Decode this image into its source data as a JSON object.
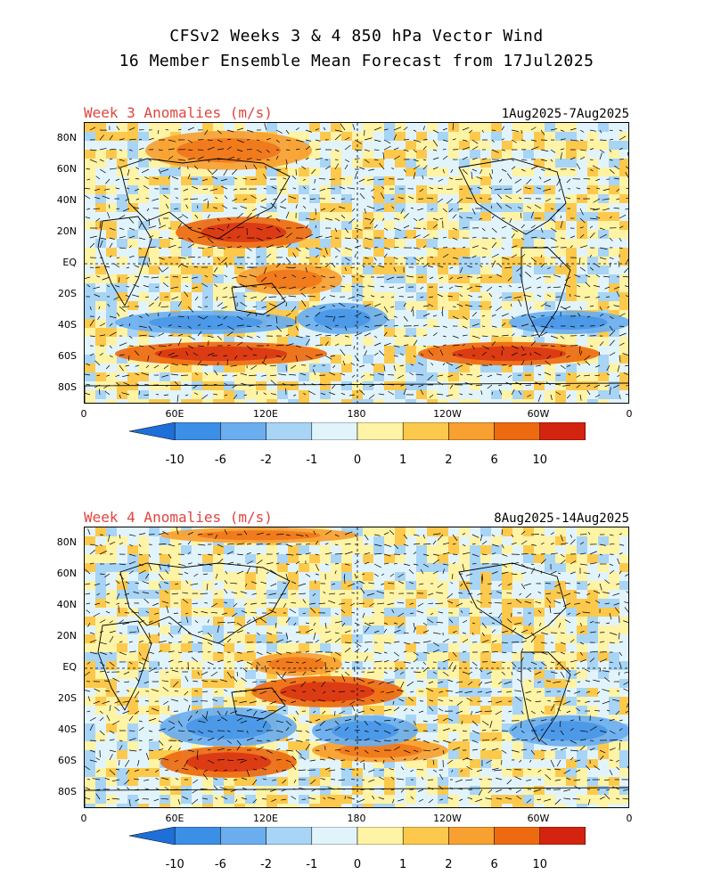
{
  "header": {
    "line1": "CFSv2 Weeks 3 & 4 850 hPa Vector Wind",
    "line2": "16 Member Ensemble Mean Forecast from 17Jul2025"
  },
  "panels": [
    {
      "title": "Week 3 Anomalies (m/s)",
      "dates": "1Aug2025-7Aug2025"
    },
    {
      "title": "Week 4 Anomalies (m/s)",
      "dates": "8Aug2025-14Aug2025"
    }
  ],
  "lat_labels": [
    "80N",
    "60N",
    "40N",
    "20N",
    "EQ",
    "20S",
    "40S",
    "60S",
    "80S"
  ],
  "lon_labels": [
    "0",
    "60E",
    "120E",
    "180",
    "120W",
    "60W",
    "0"
  ],
  "colorbar": {
    "labels": [
      "-10",
      "-6",
      "-2",
      "-1",
      "0",
      "1",
      "2",
      "6",
      "10"
    ],
    "colors": [
      "#1e6fd9",
      "#3c8fe6",
      "#6aaeef",
      "#a8d4f5",
      "#e2f4fb",
      "#fff3a6",
      "#fcc94d",
      "#f8a030",
      "#ee6a10",
      "#d42410",
      "#a80000"
    ]
  },
  "chart_data": [
    {
      "type": "heatmap",
      "title": "Week 3 Anomalies (m/s)",
      "period": "1Aug2025-7Aug2025",
      "xlim": [
        0,
        360
      ],
      "ylim": [
        -90,
        90
      ],
      "anomaly_regions": [
        {
          "lon": [
            60,
            150
          ],
          "lat": [
            10,
            30
          ],
          "level": "6"
        },
        {
          "lon": [
            100,
            170
          ],
          "lat": [
            -20,
            0
          ],
          "level": "2"
        },
        {
          "lon": [
            20,
            140
          ],
          "lat": [
            -45,
            -30
          ],
          "level": "-2"
        },
        {
          "lon": [
            20,
            160
          ],
          "lat": [
            -65,
            -50
          ],
          "level": "6"
        },
        {
          "lon": [
            220,
            340
          ],
          "lat": [
            -65,
            -50
          ],
          "level": "6"
        },
        {
          "lon": [
            280,
            360
          ],
          "lat": [
            -45,
            -30
          ],
          "level": "-2"
        },
        {
          "lon": [
            140,
            200
          ],
          "lat": [
            -45,
            -25
          ],
          "level": "-2"
        },
        {
          "lon": [
            40,
            150
          ],
          "lat": [
            60,
            85
          ],
          "level": "2"
        }
      ]
    },
    {
      "type": "heatmap",
      "title": "Week 4 Anomalies (m/s)",
      "period": "8Aug2025-14Aug2025",
      "xlim": [
        0,
        360
      ],
      "ylim": [
        -90,
        90
      ],
      "anomaly_regions": [
        {
          "lon": [
            110,
            170
          ],
          "lat": [
            -5,
            10
          ],
          "level": "2"
        },
        {
          "lon": [
            110,
            210
          ],
          "lat": [
            -25,
            -5
          ],
          "level": "6"
        },
        {
          "lon": [
            50,
            140
          ],
          "lat": [
            -50,
            -25
          ],
          "level": "-2"
        },
        {
          "lon": [
            50,
            140
          ],
          "lat": [
            -70,
            -50
          ],
          "level": "6"
        },
        {
          "lon": [
            150,
            240
          ],
          "lat": [
            -60,
            -45
          ],
          "level": "2"
        },
        {
          "lon": [
            150,
            220
          ],
          "lat": [
            -50,
            -30
          ],
          "level": "-2"
        },
        {
          "lon": [
            280,
            360
          ],
          "lat": [
            -50,
            -30
          ],
          "level": "-2"
        },
        {
          "lon": [
            50,
            180
          ],
          "lat": [
            80,
            90
          ],
          "level": "2"
        }
      ]
    }
  ]
}
